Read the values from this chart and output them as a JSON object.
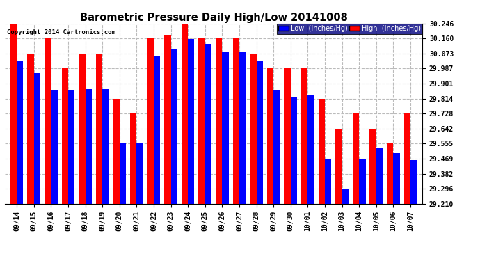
{
  "title": "Barometric Pressure Daily High/Low 20141008",
  "copyright": "Copyright 2014 Cartronics.com",
  "dates": [
    "09/14",
    "09/15",
    "09/16",
    "09/17",
    "09/18",
    "09/19",
    "09/20",
    "09/21",
    "09/22",
    "09/23",
    "09/24",
    "09/25",
    "09/26",
    "09/27",
    "09/28",
    "09/29",
    "09/30",
    "10/01",
    "10/02",
    "10/03",
    "10/04",
    "10/05",
    "10/06",
    "10/07"
  ],
  "low_values": [
    30.03,
    29.96,
    29.86,
    29.86,
    29.87,
    29.87,
    29.558,
    29.558,
    30.06,
    30.1,
    30.155,
    30.13,
    30.085,
    30.085,
    30.03,
    29.86,
    29.82,
    29.835,
    29.47,
    29.296,
    29.47,
    29.53,
    29.5,
    29.462
  ],
  "high_values": [
    30.246,
    30.073,
    30.16,
    29.987,
    30.073,
    30.073,
    29.814,
    29.728,
    30.16,
    30.175,
    30.246,
    30.16,
    30.16,
    30.16,
    30.073,
    29.987,
    29.987,
    29.987,
    29.814,
    29.642,
    29.728,
    29.642,
    29.555,
    29.728
  ],
  "ymin": 29.21,
  "ymax": 30.246,
  "yticks": [
    29.21,
    29.296,
    29.382,
    29.469,
    29.555,
    29.642,
    29.728,
    29.814,
    29.901,
    29.987,
    30.073,
    30.16,
    30.246
  ],
  "bar_width": 0.38,
  "low_color": "#0000ff",
  "high_color": "#ff0000",
  "bg_color": "#ffffff",
  "grid_color": "#bbbbbb",
  "title_fontsize": 10.5,
  "tick_fontsize": 7,
  "copyright_fontsize": 6.5,
  "legend_fontsize": 7
}
